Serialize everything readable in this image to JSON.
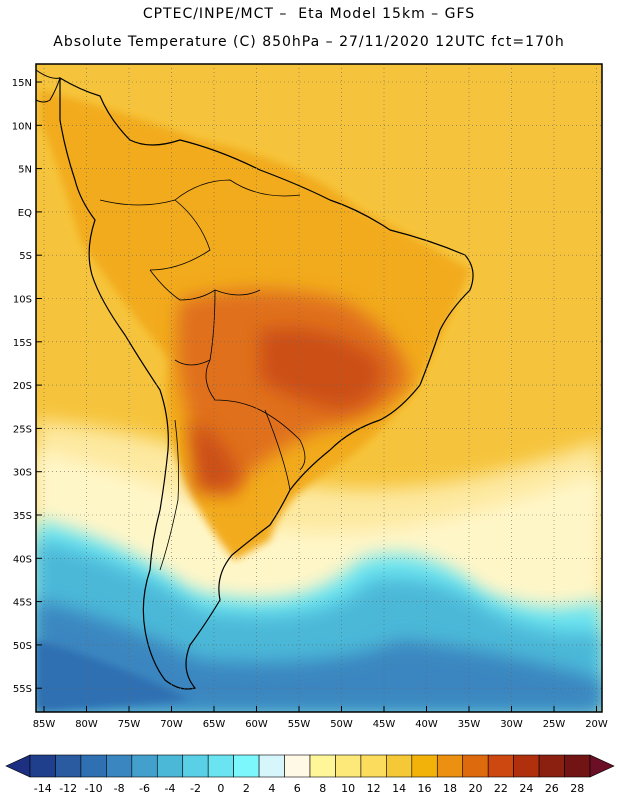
{
  "header": {
    "line1": "CPTEC/INPE/MCT –  Eta Model 15km – GFS",
    "line2": "Absolute Temperature (C) 850hPa – 27/11/2020 12UTC fct=170h"
  },
  "axes": {
    "lat_labels": [
      "15N",
      "10N",
      "5N",
      "EQ",
      "5S",
      "10S",
      "15S",
      "20S",
      "25S",
      "30S",
      "35S",
      "40S",
      "45S",
      "50S",
      "55S"
    ],
    "lon_labels": [
      "85W",
      "80W",
      "75W",
      "70W",
      "65W",
      "60W",
      "55W",
      "50W",
      "45W",
      "40W",
      "35W",
      "30W",
      "25W",
      "20W"
    ]
  },
  "colorbar": {
    "labels": [
      "-14",
      "-12",
      "-10",
      "-8",
      "-6",
      "-4",
      "-2",
      "0",
      "2",
      "4",
      "6",
      "8",
      "10",
      "12",
      "14",
      "16",
      "18",
      "20",
      "22",
      "24",
      "26",
      "28"
    ],
    "colors": [
      "#1f3e8c",
      "#2a5aa0",
      "#2f70b2",
      "#3a86c0",
      "#43a0cc",
      "#4cb8d8",
      "#5ad0e6",
      "#6ae4f0",
      "#7cf8fc",
      "#d6f6fb",
      "#fff9e6",
      "#fff69a",
      "#fde97a",
      "#fbdc5c",
      "#f5c838",
      "#f2b20a",
      "#eb9010",
      "#de6a0e",
      "#cc4810",
      "#b0300e",
      "#8c2010",
      "#721414"
    ],
    "end_left": "#1c2f80",
    "end_right": "#6a0f26"
  },
  "palette": {
    "ocean_warm": "#f6c43c",
    "land_warm": "#f2ab1a",
    "hot": "#e0701a",
    "hotter": "#cc4f14",
    "cool_south": "#fde9a0",
    "cyan": "#5ad0e6",
    "blue": "#3a86c0",
    "deep_blue": "#2a5aa0"
  }
}
